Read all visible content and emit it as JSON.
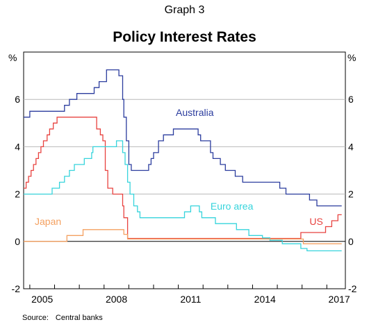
{
  "graph_label": "Graph 3",
  "source": {
    "label": "Source:",
    "text": "Central banks"
  },
  "colors": {
    "Australia": "#2b3c9e",
    "US": "#e8423f",
    "Euro area": "#36d4dc",
    "Japan": "#f4a060",
    "grid": "#b9b9b9",
    "zero_line": "#000000"
  },
  "chart_data": {
    "type": "line",
    "title": "Policy Interest Rates",
    "y_unit_left": "%",
    "y_unit_right": "%",
    "ylim": [
      -2,
      8
    ],
    "yticks": [
      -2,
      0,
      2,
      4,
      6
    ],
    "xlim": [
      2004.75,
      2017.75
    ],
    "xticks": [
      2005,
      2008,
      2011,
      2014,
      2017
    ],
    "grid": true,
    "series": [
      {
        "name": "Australia",
        "points": [
          [
            2004.75,
            5.25
          ],
          [
            2005.0,
            5.5
          ],
          [
            2006.4,
            5.75
          ],
          [
            2006.6,
            6.0
          ],
          [
            2006.9,
            6.25
          ],
          [
            2007.6,
            6.5
          ],
          [
            2007.8,
            6.75
          ],
          [
            2008.1,
            7.25
          ],
          [
            2008.6,
            7.0
          ],
          [
            2008.75,
            6.0
          ],
          [
            2008.8,
            5.25
          ],
          [
            2008.9,
            4.25
          ],
          [
            2009.0,
            3.25
          ],
          [
            2009.1,
            3.0
          ],
          [
            2009.8,
            3.25
          ],
          [
            2009.9,
            3.5
          ],
          [
            2010.0,
            3.75
          ],
          [
            2010.2,
            4.25
          ],
          [
            2010.4,
            4.5
          ],
          [
            2010.8,
            4.75
          ],
          [
            2011.8,
            4.5
          ],
          [
            2011.9,
            4.25
          ],
          [
            2012.3,
            3.75
          ],
          [
            2012.4,
            3.5
          ],
          [
            2012.7,
            3.25
          ],
          [
            2012.9,
            3.0
          ],
          [
            2013.3,
            2.75
          ],
          [
            2013.6,
            2.5
          ],
          [
            2015.1,
            2.25
          ],
          [
            2015.35,
            2.0
          ],
          [
            2016.3,
            1.75
          ],
          [
            2016.6,
            1.5
          ],
          [
            2017.6,
            1.5
          ]
        ]
      },
      {
        "name": "US",
        "points": [
          [
            2004.75,
            2.25
          ],
          [
            2004.85,
            2.5
          ],
          [
            2004.95,
            2.75
          ],
          [
            2005.05,
            3.0
          ],
          [
            2005.15,
            3.25
          ],
          [
            2005.25,
            3.5
          ],
          [
            2005.35,
            3.75
          ],
          [
            2005.45,
            4.0
          ],
          [
            2005.55,
            4.25
          ],
          [
            2005.7,
            4.5
          ],
          [
            2005.8,
            4.75
          ],
          [
            2005.95,
            5.0
          ],
          [
            2006.1,
            5.25
          ],
          [
            2007.7,
            4.75
          ],
          [
            2007.85,
            4.5
          ],
          [
            2007.95,
            4.25
          ],
          [
            2008.05,
            3.0
          ],
          [
            2008.15,
            2.25
          ],
          [
            2008.35,
            2.0
          ],
          [
            2008.75,
            1.5
          ],
          [
            2008.8,
            1.0
          ],
          [
            2008.95,
            0.125
          ],
          [
            2015.95,
            0.375
          ],
          [
            2016.95,
            0.625
          ],
          [
            2017.2,
            0.875
          ],
          [
            2017.45,
            1.125
          ],
          [
            2017.6,
            1.125
          ]
        ]
      },
      {
        "name": "Euro area",
        "points": [
          [
            2004.75,
            2.0
          ],
          [
            2005.9,
            2.25
          ],
          [
            2006.2,
            2.5
          ],
          [
            2006.4,
            2.75
          ],
          [
            2006.6,
            3.0
          ],
          [
            2006.8,
            3.25
          ],
          [
            2007.2,
            3.5
          ],
          [
            2007.5,
            3.75
          ],
          [
            2007.55,
            4.0
          ],
          [
            2008.5,
            4.25
          ],
          [
            2008.75,
            3.75
          ],
          [
            2008.85,
            3.25
          ],
          [
            2008.95,
            2.5
          ],
          [
            2009.05,
            2.0
          ],
          [
            2009.2,
            1.5
          ],
          [
            2009.35,
            1.25
          ],
          [
            2009.45,
            1.0
          ],
          [
            2011.25,
            1.25
          ],
          [
            2011.5,
            1.5
          ],
          [
            2011.85,
            1.25
          ],
          [
            2011.95,
            1.0
          ],
          [
            2012.5,
            0.75
          ],
          [
            2013.35,
            0.5
          ],
          [
            2013.85,
            0.25
          ],
          [
            2014.4,
            0.15
          ],
          [
            2014.7,
            0.05
          ],
          [
            2015.2,
            -0.1
          ],
          [
            2015.95,
            -0.3
          ],
          [
            2016.2,
            -0.4
          ],
          [
            2017.6,
            -0.4
          ]
        ]
      },
      {
        "name": "Japan",
        "points": [
          [
            2004.75,
            0.0
          ],
          [
            2006.5,
            0.25
          ],
          [
            2007.15,
            0.5
          ],
          [
            2008.8,
            0.3
          ],
          [
            2008.95,
            0.1
          ],
          [
            2016.05,
            -0.1
          ],
          [
            2017.6,
            -0.1
          ]
        ]
      }
    ],
    "labels": [
      {
        "series": "Australia",
        "text": "Australia",
        "x": 2010.9,
        "y": 5.3
      },
      {
        "series": "Euro area",
        "text": "Euro area",
        "x": 2012.3,
        "y": 1.35
      },
      {
        "series": "US",
        "text": "US",
        "x": 2016.3,
        "y": 0.7
      },
      {
        "series": "Japan",
        "text": "Japan",
        "x": 2005.2,
        "y": 0.7
      }
    ]
  }
}
